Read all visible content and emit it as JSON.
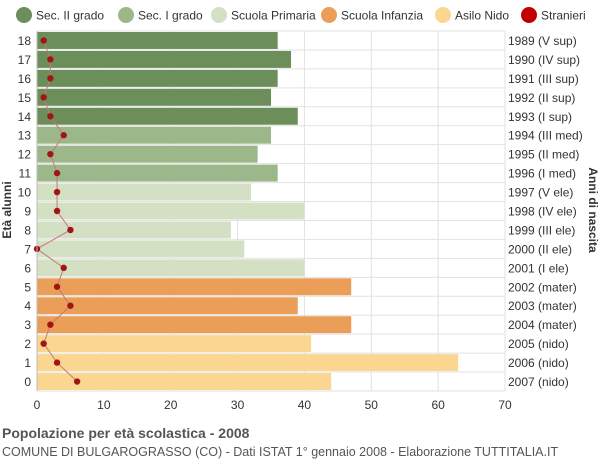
{
  "chart_data": {
    "type": "bar",
    "orientation": "horizontal",
    "title": "Popolazione per età scolastica - 2008",
    "subtitle": "COMUNE DI BULGAROGRASSO (CO) - Dati ISTAT 1° gennaio 2008 - Elaborazione TUTTITALIA.IT",
    "ylabel_left": "Età alunni",
    "ylabel_right": "Anni di nascita",
    "xlim": [
      0,
      70
    ],
    "x_ticks": [
      "0",
      "10",
      "20",
      "30",
      "40",
      "50",
      "60",
      "70"
    ],
    "grid": true,
    "legend_position": "top",
    "legend": [
      {
        "name": "Sec. II grado",
        "color": "#6b8e5a",
        "marker": "circle"
      },
      {
        "name": "Sec. I grado",
        "color": "#9cb88a",
        "marker": "circle"
      },
      {
        "name": "Scuola Primaria",
        "color": "#d3e0c4",
        "marker": "circle"
      },
      {
        "name": "Scuola Infanzia",
        "color": "#eb9e57",
        "marker": "circle"
      },
      {
        "name": "Asilo Nido",
        "color": "#fbd691",
        "marker": "circle"
      },
      {
        "name": "Stranieri",
        "color": "#c00000",
        "marker": "circle"
      }
    ],
    "rows": [
      {
        "age": "18",
        "birth": "1989 (V sup)",
        "value": 36,
        "stranieri": 1,
        "group": 0
      },
      {
        "age": "17",
        "birth": "1990 (IV sup)",
        "value": 38,
        "stranieri": 2,
        "group": 0
      },
      {
        "age": "16",
        "birth": "1991 (III sup)",
        "value": 36,
        "stranieri": 2,
        "group": 0
      },
      {
        "age": "15",
        "birth": "1992 (II sup)",
        "value": 35,
        "stranieri": 1,
        "group": 0
      },
      {
        "age": "14",
        "birth": "1993 (I sup)",
        "value": 39,
        "stranieri": 2,
        "group": 0
      },
      {
        "age": "13",
        "birth": "1994 (III med)",
        "value": 35,
        "stranieri": 4,
        "group": 1
      },
      {
        "age": "12",
        "birth": "1995 (II med)",
        "value": 33,
        "stranieri": 2,
        "group": 1
      },
      {
        "age": "11",
        "birth": "1996 (I med)",
        "value": 36,
        "stranieri": 3,
        "group": 1
      },
      {
        "age": "10",
        "birth": "1997 (V ele)",
        "value": 32,
        "stranieri": 3,
        "group": 2
      },
      {
        "age": "9",
        "birth": "1998 (IV ele)",
        "value": 40,
        "stranieri": 3,
        "group": 2
      },
      {
        "age": "8",
        "birth": "1999 (III ele)",
        "value": 29,
        "stranieri": 5,
        "group": 2
      },
      {
        "age": "7",
        "birth": "2000 (II ele)",
        "value": 31,
        "stranieri": 0,
        "group": 2
      },
      {
        "age": "6",
        "birth": "2001 (I ele)",
        "value": 40,
        "stranieri": 4,
        "group": 2
      },
      {
        "age": "5",
        "birth": "2002 (mater)",
        "value": 47,
        "stranieri": 3,
        "group": 3
      },
      {
        "age": "4",
        "birth": "2003 (mater)",
        "value": 39,
        "stranieri": 5,
        "group": 3
      },
      {
        "age": "3",
        "birth": "2004 (mater)",
        "value": 47,
        "stranieri": 2,
        "group": 3
      },
      {
        "age": "2",
        "birth": "2005 (nido)",
        "value": 41,
        "stranieri": 1,
        "group": 4
      },
      {
        "age": "1",
        "birth": "2006 (nido)",
        "value": 63,
        "stranieri": 3,
        "group": 4
      },
      {
        "age": "0",
        "birth": "2007 (nido)",
        "value": 44,
        "stranieri": 6,
        "group": 4
      }
    ]
  }
}
